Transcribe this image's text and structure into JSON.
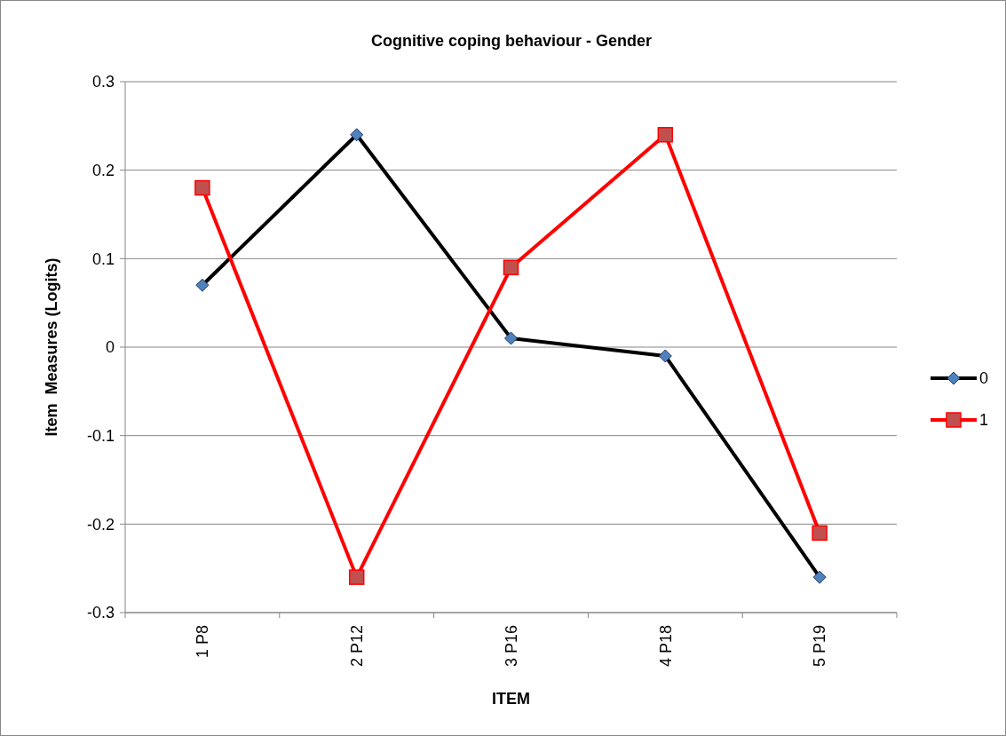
{
  "chart_data": {
    "type": "line",
    "title": "Cognitive coping behaviour  - Gender",
    "xlabel": "ITEM",
    "ylabel": "Item  Measures (Logits)",
    "categories": [
      "1 P8",
      "2 P12",
      "3 P16",
      "4 P18",
      "5 P19"
    ],
    "series": [
      {
        "name": "0",
        "color": "#000000",
        "marker": "diamond",
        "values": [
          0.07,
          0.24,
          0.01,
          -0.01,
          -0.26
        ]
      },
      {
        "name": "1",
        "color": "#ff0000",
        "marker": "square",
        "values": [
          0.18,
          -0.26,
          0.09,
          0.24,
          -0.21
        ]
      }
    ],
    "ylim": [
      -0.3,
      0.3
    ],
    "yticks": [
      -0.3,
      -0.2,
      -0.1,
      0,
      0.1,
      0.2,
      0.3
    ],
    "grid": "y",
    "legend": "right"
  }
}
